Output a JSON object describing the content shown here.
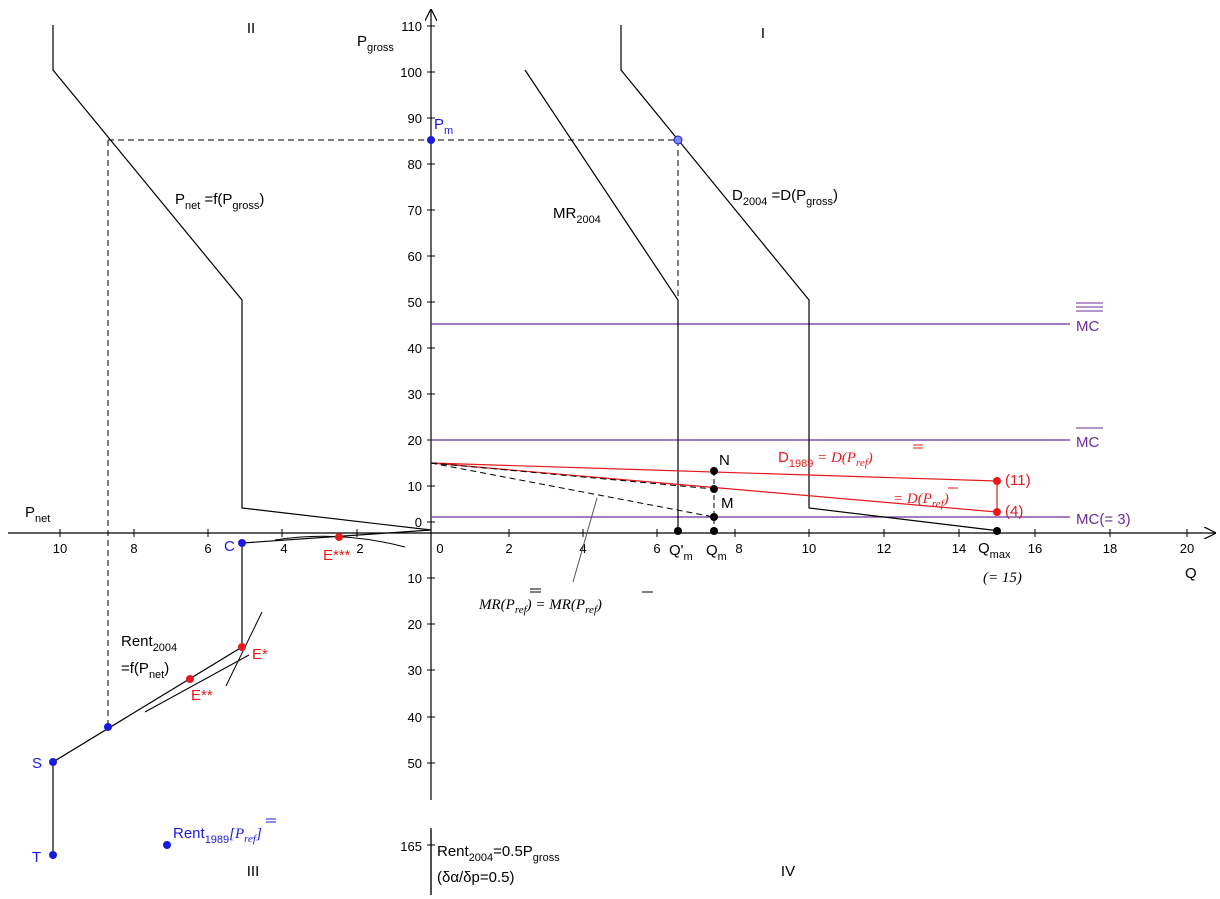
{
  "quadrants": {
    "q1": "I",
    "q2": "II",
    "q3": "III",
    "q4": "IV"
  },
  "axes": {
    "y_up_label": "P",
    "y_up_sub": "gross",
    "x_left_label": "P",
    "x_left_sub": "net",
    "x_right_label": "Q",
    "y_up_ticks": [
      "0",
      "10",
      "20",
      "30",
      "40",
      "50",
      "60",
      "70",
      "80",
      "90",
      "100",
      "110"
    ],
    "x_right_ticks": [
      "0",
      "2",
      "4",
      "6",
      "8",
      "10",
      "12",
      "14",
      "16",
      "18",
      "20"
    ],
    "x_left_ticks": [
      "10",
      "8",
      "6",
      "4",
      "2"
    ],
    "y_down_ticks": [
      "10",
      "20",
      "30",
      "40",
      "50"
    ],
    "y_down_extra": "165"
  },
  "curves": {
    "pnet_main": "P",
    "pnet_sub": "net",
    "pnet_rest": " =f(P",
    "pnet_sub2": "gross",
    "pnet_end": ")",
    "mr_main": "MR",
    "mr_sub": "2004",
    "d_main": "D",
    "d_sub": "2004",
    "d_rest": " =D(P",
    "d_sub2": "gross",
    "d_end": ")",
    "mc3": "MC(= 3)",
    "mc_bar": "MC",
    "mc_dbar": "MC",
    "d1989_main": "D",
    "d1989_sub": "1989",
    "d1989_rest": " = D(P",
    "d1989_ref": "ref",
    "d1989_end": ")",
    "dpref": "= D(P",
    "dpref_ref": "ref",
    "dpref_end": ")",
    "mr_ref": "MR(P",
    "mr_ref_ref": "ref",
    "mr_ref_mid": ") = MR(P",
    "mr_ref_ref2": "ref",
    "mr_ref_end": ")",
    "rent_main": "Rent",
    "rent_sub": "2004",
    "rent_line2a": "=f(P",
    "rent_line2sub": "net",
    "rent_line2b": ")",
    "rent_eq_main": "Rent",
    "rent_eq_sub": "2004",
    "rent_eq_rest": "=0.5P",
    "rent_eq_sub2": "gross",
    "rent_eq_line2": "(δα/δp=0.5)"
  },
  "points": {
    "pm": "P",
    "pm_sub": "m",
    "n": "N",
    "m": "M",
    "p11": "(11)",
    "p4": "(4)",
    "qm_prime": "Q'",
    "qm_prime_sub": "m",
    "qm": "Q",
    "qm_sub": "m",
    "qmax": "Q",
    "qmax_sub": "max",
    "qmax_note": "(= 15)",
    "c": "C",
    "e1": "E*",
    "e2": "E**",
    "e3": "E***",
    "s": "S",
    "t": "T",
    "rent1989": "Rent",
    "rent1989_sub": "1989",
    "rent1989_ref": "[P",
    "rent1989_ref_sub": "ref",
    "rent1989_end": "]"
  },
  "colors": {
    "black": "#000000",
    "red": "#e41a1c",
    "blue": "#1a1adf",
    "purple": "#6a2c9a",
    "grey": "#555555"
  }
}
